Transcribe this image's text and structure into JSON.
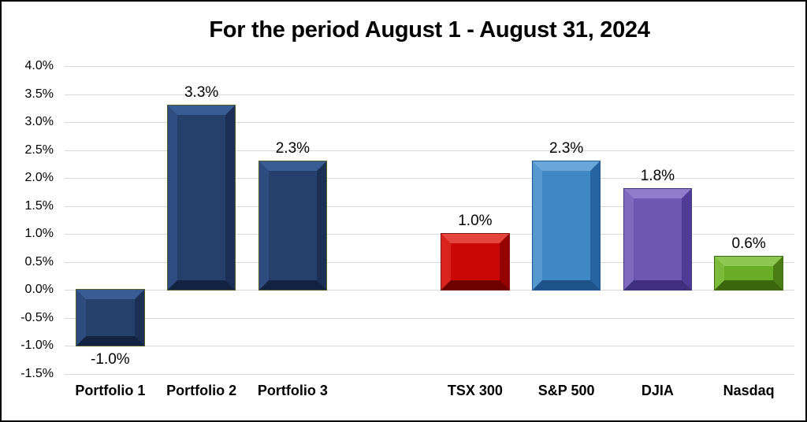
{
  "chart_data": {
    "type": "bar",
    "title": "For the period August 1 - August 31, 2024",
    "xlabel": "",
    "ylabel": "",
    "ylim": [
      -1.5,
      4.0
    ],
    "grid": true,
    "legend": false,
    "grid_color": "#D9D9D9",
    "background": "#FFFFFF",
    "frame_color": "#000000",
    "y_ticks": [
      {
        "label": "4.0%",
        "value": 4.0
      },
      {
        "label": "3.5%",
        "value": 3.5
      },
      {
        "label": "3.0%",
        "value": 3.0
      },
      {
        "label": "2.5%",
        "value": 2.5
      },
      {
        "label": "2.0%",
        "value": 2.0
      },
      {
        "label": "1.5%",
        "value": 1.5
      },
      {
        "label": "1.0%",
        "value": 1.0
      },
      {
        "label": "0.5%",
        "value": 0.5
      },
      {
        "label": "0.0%",
        "value": 0.0
      },
      {
        "label": "-0.5%",
        "value": -0.5
      },
      {
        "label": "-1.0%",
        "value": -1.0
      },
      {
        "label": "-1.5%",
        "value": -1.5
      }
    ],
    "categories": [
      "Portfolio 1",
      "Portfolio 2",
      "Portfolio 3",
      "",
      "TSX 300",
      "S&P 500",
      "DJIA",
      "Nasdaq"
    ],
    "values": [
      -1.0,
      3.3,
      2.3,
      null,
      1.0,
      2.3,
      1.8,
      0.6
    ],
    "data_labels": [
      "-1.0%",
      "3.3%",
      "2.3%",
      null,
      "1.0%",
      "2.3%",
      "1.8%",
      "0.6%"
    ],
    "bar_colors": [
      {
        "face": "#25406B",
        "light": "#3A5C94",
        "mid": "#2F4C80",
        "dark": "#1B3054",
        "darkest": "#122442",
        "outline": "#4F5F26"
      },
      {
        "face": "#25406B",
        "light": "#3A5C94",
        "mid": "#2F4C80",
        "dark": "#1B3054",
        "darkest": "#122442",
        "outline": "#4F5F26"
      },
      {
        "face": "#25406B",
        "light": "#3A5C94",
        "mid": "#2F4C80",
        "dark": "#1B3054",
        "darkest": "#122442",
        "outline": "#4F5F26"
      },
      null,
      {
        "face": "#CB0606",
        "light": "#E4453D",
        "mid": "#D8241C",
        "dark": "#960202",
        "darkest": "#6E0000",
        "outline": "#7E1B12"
      },
      {
        "face": "#3F88C5",
        "light": "#6BA6D9",
        "mid": "#5598CF",
        "dark": "#2663A0",
        "darkest": "#1D5389",
        "outline": "#1E5A94"
      },
      {
        "face": "#6C57B1",
        "light": "#8F7CCA",
        "mid": "#7E69BE",
        "dark": "#4E3C96",
        "darkest": "#3F2F7E",
        "outline": "#433478"
      },
      {
        "face": "#69AC26",
        "light": "#8EC751",
        "mid": "#7CBA3B",
        "dark": "#4A7D13",
        "darkest": "#3A660C",
        "outline": "#3F6B10"
      }
    ]
  }
}
